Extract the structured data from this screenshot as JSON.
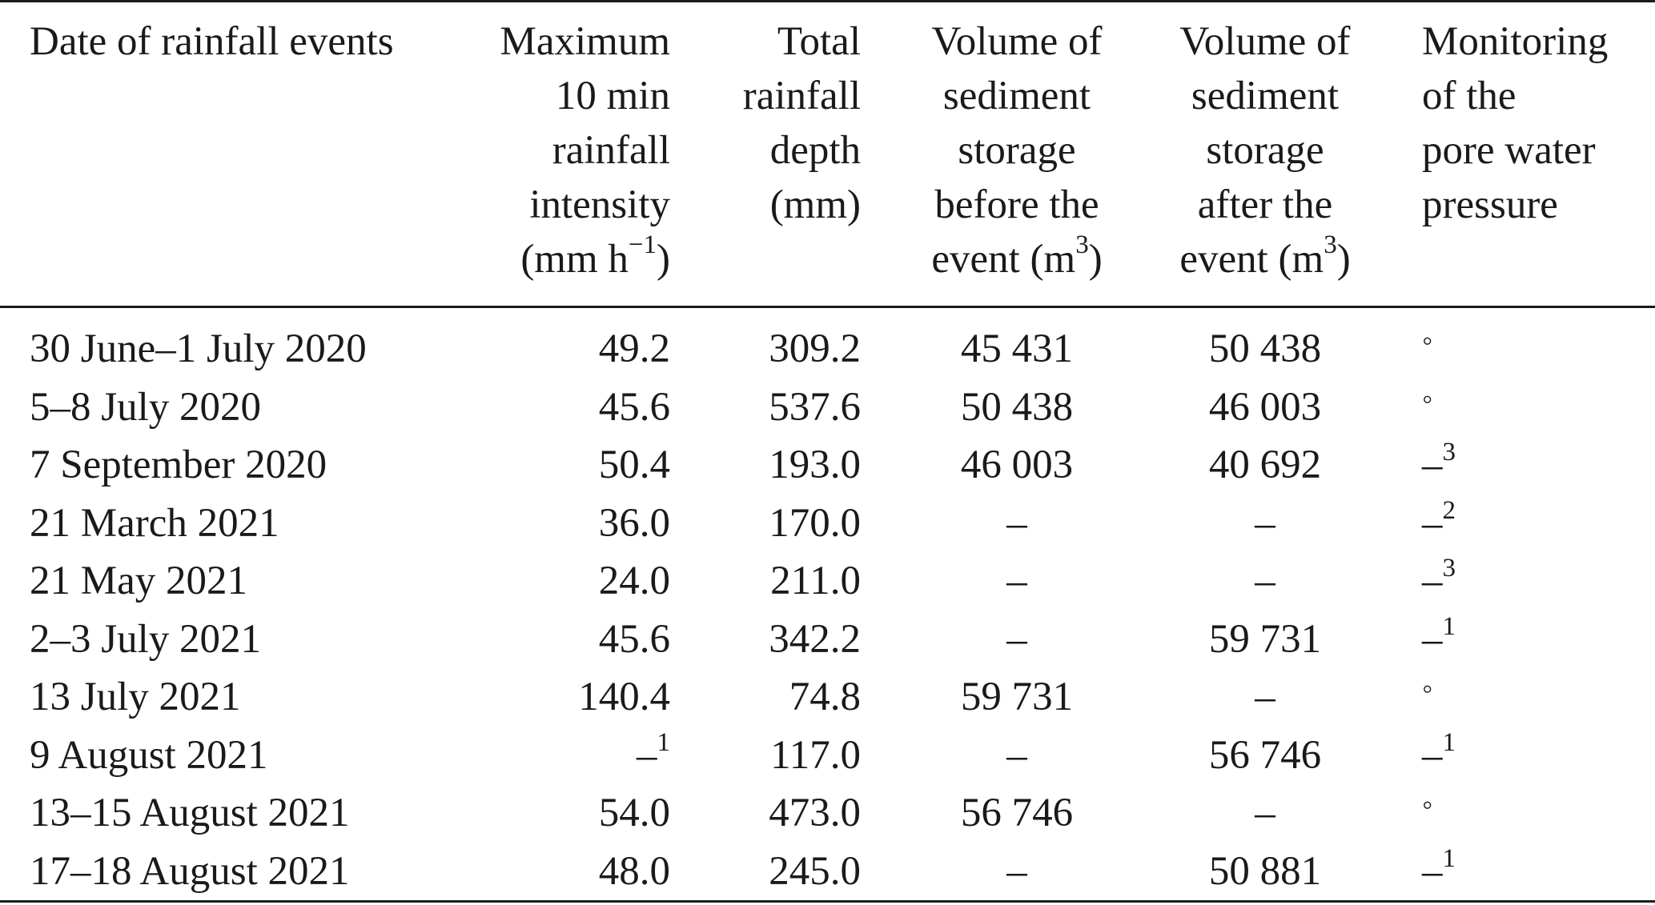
{
  "table": {
    "headers": {
      "date": [
        "Date of rainfall events"
      ],
      "max_intensity": [
        "Maximum",
        "10 min",
        "rainfall",
        "intensity",
        "(mm h",
        "−1",
        ")"
      ],
      "total_depth": [
        "Total",
        "rainfall",
        "depth",
        "(mm)"
      ],
      "volume_before": [
        "Volume of",
        "sediment",
        "storage",
        "before the",
        "event (m",
        "3",
        ")"
      ],
      "volume_after": [
        "Volume of",
        "sediment",
        "storage",
        "after the",
        "event (m",
        "3",
        ")"
      ],
      "monitoring": [
        "Monitoring",
        "of the",
        "pore water",
        "pressure"
      ]
    },
    "rows": [
      {
        "date": "30 June–1 July 2020",
        "max": "49.2",
        "max_sup": "",
        "total": "309.2",
        "before": "45 431",
        "after": "50 438",
        "monitor": "◦",
        "monitor_sup": ""
      },
      {
        "date": "5–8 July 2020",
        "max": "45.6",
        "max_sup": "",
        "total": "537.6",
        "before": "50 438",
        "after": "46 003",
        "monitor": "◦",
        "monitor_sup": ""
      },
      {
        "date": "7 September 2020",
        "max": "50.4",
        "max_sup": "",
        "total": "193.0",
        "before": "46 003",
        "after": "40 692",
        "monitor": "–",
        "monitor_sup": "3"
      },
      {
        "date": "21 March 2021",
        "max": "36.0",
        "max_sup": "",
        "total": "170.0",
        "before": "–",
        "after": "–",
        "monitor": "–",
        "monitor_sup": "2"
      },
      {
        "date": "21 May 2021",
        "max": "24.0",
        "max_sup": "",
        "total": "211.0",
        "before": "–",
        "after": "–",
        "monitor": "–",
        "monitor_sup": "3"
      },
      {
        "date": "2–3 July 2021",
        "max": "45.6",
        "max_sup": "",
        "total": "342.2",
        "before": "–",
        "after": "59 731",
        "monitor": "–",
        "monitor_sup": "1"
      },
      {
        "date": "13 July 2021",
        "max": "140.4",
        "max_sup": "",
        "total": "74.8",
        "before": "59 731",
        "after": "–",
        "monitor": "◦",
        "monitor_sup": ""
      },
      {
        "date": "9 August 2021",
        "max": "–",
        "max_sup": "1",
        "total": "117.0",
        "before": "–",
        "after": "56 746",
        "monitor": "–",
        "monitor_sup": "1"
      },
      {
        "date": "13–15 August 2021",
        "max": "54.0",
        "max_sup": "",
        "total": "473.0",
        "before": "56 746",
        "after": "–",
        "monitor": "◦",
        "monitor_sup": ""
      },
      {
        "date": "17–18 August 2021",
        "max": "48.0",
        "max_sup": "",
        "total": "245.0",
        "before": "–",
        "after": "50 881",
        "monitor": "–",
        "monitor_sup": "1"
      }
    ]
  }
}
